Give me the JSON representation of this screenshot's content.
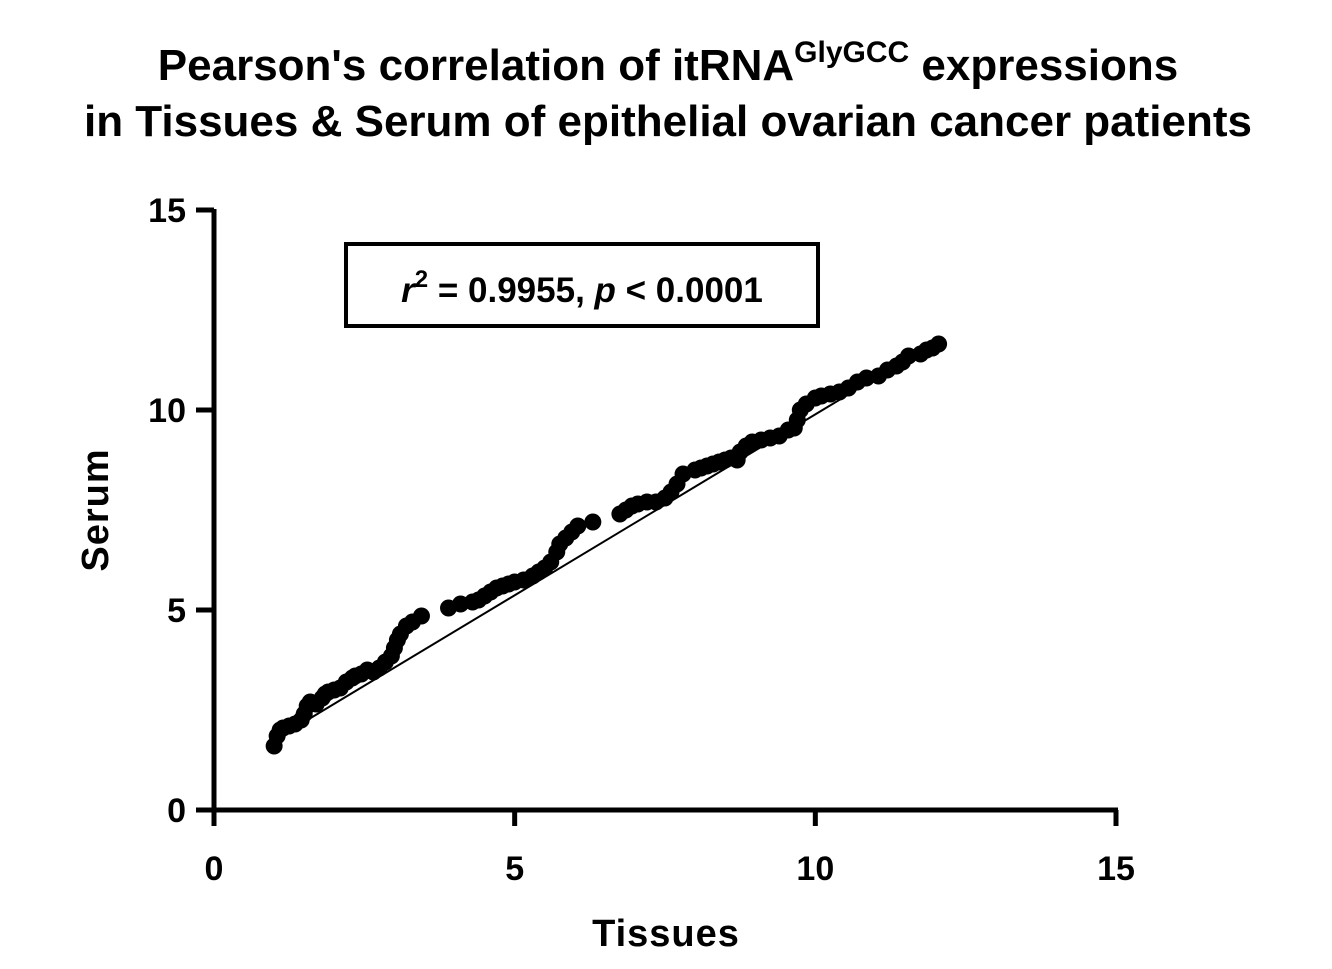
{
  "chart_data": {
    "type": "scatter",
    "title_line1_prefix": "Pearson's correlation of itRNA",
    "title_line1_sup": "GlyGCC",
    "title_line1_suffix": " expressions",
    "title_line2": "in Tissues & Serum of epithelial ovarian cancer patients",
    "xlabel": "Tissues",
    "ylabel": "Serum",
    "xlim": [
      0,
      15
    ],
    "ylim": [
      0,
      15
    ],
    "x_ticks": [
      "0",
      "5",
      "10",
      "15"
    ],
    "y_ticks": [
      "0",
      "5",
      "10",
      "15"
    ],
    "annotation": {
      "r_symbol": "r",
      "r_exponent": "2",
      "r_value": " = 0.9955, ",
      "p_symbol": "p",
      "p_value": " < 0.0001"
    },
    "fit_line": {
      "x": [
        1.0,
        12.0
      ],
      "y": [
        1.75,
        11.7
      ]
    },
    "marker_color": "#000000",
    "series": [
      {
        "x": [
          1.0,
          1.05,
          1.1,
          1.15,
          1.25,
          1.35,
          1.45,
          1.5,
          1.55,
          1.6,
          1.7,
          1.8,
          1.85,
          1.9,
          2.0,
          2.1,
          2.2,
          2.3,
          2.35,
          2.45,
          2.55,
          2.65,
          2.75,
          2.85,
          2.95,
          3.0,
          3.05,
          3.1,
          3.2,
          3.3,
          3.45,
          3.9,
          4.1,
          4.3,
          4.4,
          4.5,
          4.6,
          4.7,
          4.8,
          4.9,
          5.0,
          5.15,
          5.3,
          5.4,
          5.5,
          5.6,
          5.7,
          5.75,
          5.85,
          5.95,
          6.05,
          6.3,
          6.75,
          6.85,
          6.95,
          7.05,
          7.2,
          7.35,
          7.5,
          7.6,
          7.7,
          7.8,
          8.0,
          8.1,
          8.2,
          8.3,
          8.4,
          8.5,
          8.6,
          8.7,
          8.75,
          8.85,
          8.95,
          9.1,
          9.25,
          9.4,
          9.55,
          9.65,
          9.7,
          9.75,
          9.85,
          10.0,
          10.1,
          10.25,
          10.4,
          10.55,
          10.7,
          10.85,
          11.05,
          11.2,
          11.35,
          11.45,
          11.55,
          11.75,
          11.85,
          11.95,
          12.05
        ],
        "y": [
          1.6,
          1.85,
          2.0,
          2.05,
          2.1,
          2.15,
          2.25,
          2.4,
          2.6,
          2.7,
          2.65,
          2.8,
          2.9,
          2.95,
          3.0,
          3.05,
          3.2,
          3.3,
          3.35,
          3.4,
          3.5,
          3.45,
          3.55,
          3.7,
          3.85,
          4.05,
          4.25,
          4.4,
          4.6,
          4.7,
          4.85,
          5.05,
          5.15,
          5.2,
          5.25,
          5.35,
          5.45,
          5.55,
          5.6,
          5.65,
          5.7,
          5.75,
          5.85,
          5.95,
          6.05,
          6.2,
          6.45,
          6.65,
          6.8,
          6.95,
          7.1,
          7.2,
          7.4,
          7.5,
          7.6,
          7.65,
          7.7,
          7.7,
          7.8,
          7.95,
          8.15,
          8.4,
          8.5,
          8.55,
          8.6,
          8.65,
          8.7,
          8.75,
          8.8,
          8.75,
          8.95,
          9.1,
          9.2,
          9.25,
          9.3,
          9.35,
          9.5,
          9.55,
          9.75,
          10.0,
          10.15,
          10.3,
          10.35,
          10.4,
          10.45,
          10.55,
          10.7,
          10.8,
          10.85,
          11.0,
          11.1,
          11.2,
          11.35,
          11.4,
          11.5,
          11.55,
          11.65
        ]
      }
    ]
  }
}
